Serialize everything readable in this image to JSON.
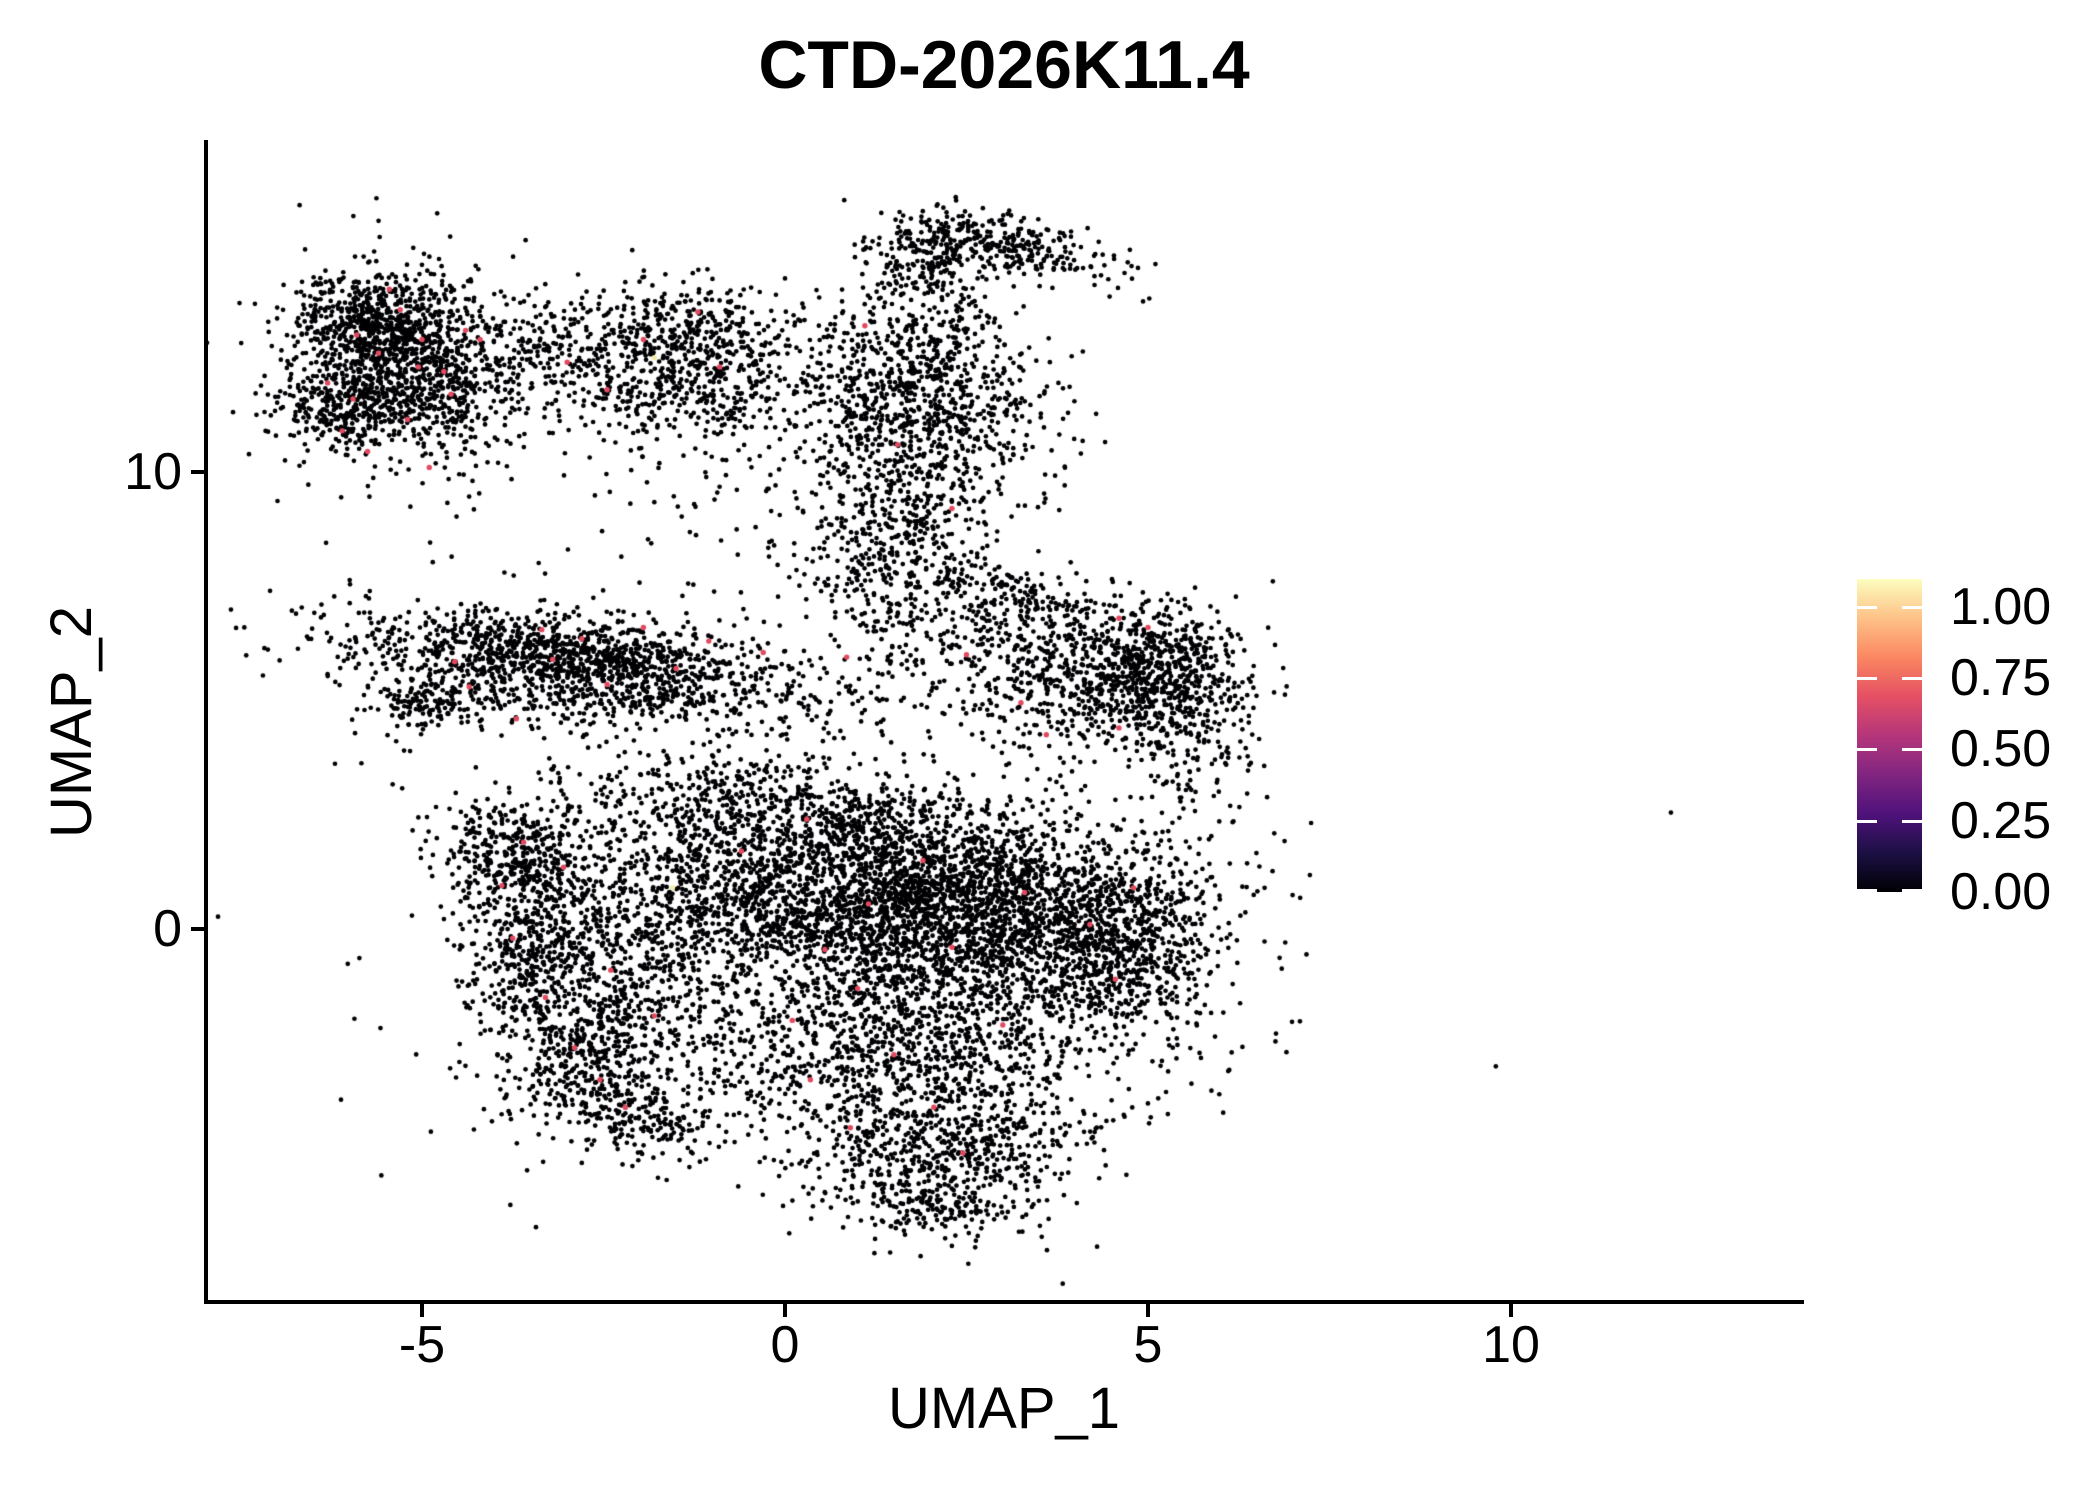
{
  "title": "CTD-2026K11.4",
  "axes": {
    "x": {
      "label": "UMAP_1",
      "ticks": [
        "-5",
        "0",
        "5",
        "10"
      ],
      "tick_values": [
        -5,
        0,
        5,
        10
      ],
      "range": [
        -7.97,
        14.01
      ]
    },
    "y": {
      "label": "UMAP_2",
      "ticks": [
        "10",
        "0"
      ],
      "tick_values": [
        10,
        0
      ],
      "range": [
        -8.16,
        17.26
      ]
    }
  },
  "legend": {
    "ticks": [
      "1.00",
      "0.75",
      "0.50",
      "0.25",
      "0.00"
    ],
    "tick_values": [
      1.0,
      0.75,
      0.5,
      0.25,
      0.0
    ],
    "bar_value_range": [
      0,
      1.098
    ],
    "colormap": [
      [
        "#000004",
        0.0
      ],
      [
        "#1C1044",
        0.125
      ],
      [
        "#4F127B",
        0.25
      ],
      [
        "#812581",
        0.375
      ],
      [
        "#B5367A",
        0.5
      ],
      [
        "#E55064",
        0.625
      ],
      [
        "#FB8761",
        0.75
      ],
      [
        "#FEC287",
        0.875
      ],
      [
        "#FCFDBF",
        1.0
      ]
    ]
  },
  "chart_data": {
    "type": "scatter",
    "title": "CTD-2026K11.4",
    "xlabel": "UMAP_1",
    "ylabel": "UMAP_2",
    "xlim": [
      -7.97,
      14.01
    ],
    "ylim": [
      -8.16,
      17.26
    ],
    "grid": false,
    "legend_position": "right",
    "point_color": "#000004",
    "highlight_color": "#E3495F",
    "high_expression_color": "#F2EDA8",
    "clusters": [
      {
        "x": -5.6,
        "y": 13.25,
        "sx": 0.62,
        "sy": 0.55,
        "rot": 0,
        "n": 620
      },
      {
        "x": -5.05,
        "y": 11.95,
        "sx": 0.7,
        "sy": 0.7,
        "rot": 0,
        "n": 620
      },
      {
        "x": -6.15,
        "y": 11.5,
        "sx": 0.45,
        "sy": 0.5,
        "rot": 0,
        "n": 260
      },
      {
        "x": -5.3,
        "y": 12.3,
        "sx": 1.05,
        "sy": 1.4,
        "rot": 0,
        "n": 270
      },
      {
        "x": -3.55,
        "y": 12.9,
        "sx": 0.52,
        "sy": 0.55,
        "rot": 0,
        "n": 95
      },
      {
        "x": -2.05,
        "y": 12.35,
        "sx": 0.78,
        "sy": 0.8,
        "rot": 0,
        "n": 430
      },
      {
        "x": -0.75,
        "y": 11.9,
        "sx": 0.7,
        "sy": 0.75,
        "rot": 0,
        "n": 260
      },
      {
        "x": -1.35,
        "y": 13.35,
        "sx": 0.5,
        "sy": 0.38,
        "rot": 0,
        "n": 110
      },
      {
        "x": 1.85,
        "y": 14.55,
        "sx": 0.38,
        "sy": 0.5,
        "rot": 0,
        "n": 190
      },
      {
        "x": 3.1,
        "y": 15.0,
        "sx": 0.8,
        "sy": 0.3,
        "rot": -22,
        "n": 290
      },
      {
        "x": 2.15,
        "y": 13.3,
        "sx": 0.6,
        "sy": 0.65,
        "rot": 0,
        "n": 110
      },
      {
        "x": 0.35,
        "y": 13.1,
        "sx": 0.9,
        "sy": 0.8,
        "rot": 0,
        "n": 90
      },
      {
        "x": 1.9,
        "y": 11.3,
        "sx": 0.9,
        "sy": 0.8,
        "rot": 0,
        "n": 620
      },
      {
        "x": 1.6,
        "y": 9.0,
        "sx": 0.75,
        "sy": 1.2,
        "rot": 0,
        "n": 470
      },
      {
        "x": 1.75,
        "y": 12.55,
        "sx": 0.55,
        "sy": 0.5,
        "rot": 0,
        "n": 130
      },
      {
        "x": 1.45,
        "y": 7.6,
        "sx": 0.55,
        "sy": 0.7,
        "rot": 0,
        "n": 90
      },
      {
        "x": -1.0,
        "y": 9.6,
        "sx": 0.9,
        "sy": 1.2,
        "rot": 0,
        "n": 60
      },
      {
        "x": -3.3,
        "y": 6.1,
        "sx": 1.35,
        "sy": 0.38,
        "rot": -6,
        "n": 760
      },
      {
        "x": -2.2,
        "y": 5.3,
        "sx": 1.6,
        "sy": 0.45,
        "rot": -5,
        "n": 620
      },
      {
        "x": -5.0,
        "y": 4.95,
        "sx": 0.45,
        "sy": 0.3,
        "rot": 20,
        "n": 130
      },
      {
        "x": -2.7,
        "y": 5.8,
        "sx": 2.1,
        "sy": 0.95,
        "rot": -5,
        "n": 280
      },
      {
        "x": 5.15,
        "y": 5.5,
        "sx": 0.6,
        "sy": 0.8,
        "rot": 0,
        "n": 660
      },
      {
        "x": 3.9,
        "y": 5.6,
        "sx": 0.95,
        "sy": 0.85,
        "rot": 0,
        "n": 480
      },
      {
        "x": 3.3,
        "y": 7.35,
        "sx": 0.65,
        "sy": 0.22,
        "rot": -18,
        "n": 80
      },
      {
        "x": 2.75,
        "y": 6.6,
        "sx": 1.0,
        "sy": 0.65,
        "rot": 0,
        "n": 170
      },
      {
        "x": 5.6,
        "y": 3.6,
        "sx": 0.5,
        "sy": 0.8,
        "rot": 0,
        "n": 90
      },
      {
        "x": -3.6,
        "y": 1.5,
        "sx": 0.55,
        "sy": 0.75,
        "rot": 25,
        "n": 430
      },
      {
        "x": -3.45,
        "y": -0.6,
        "sx": 0.45,
        "sy": 0.95,
        "rot": 0,
        "n": 400
      },
      {
        "x": -2.65,
        "y": -2.75,
        "sx": 0.5,
        "sy": 0.85,
        "rot": -30,
        "n": 360
      },
      {
        "x": -2.0,
        "y": -4.1,
        "sx": 0.5,
        "sy": 0.4,
        "rot": -40,
        "n": 190
      },
      {
        "x": -2.7,
        "y": -0.8,
        "sx": 0.85,
        "sy": 1.7,
        "rot": 0,
        "n": 300
      },
      {
        "x": -1.45,
        "y": 0.3,
        "sx": 0.85,
        "sy": 1.25,
        "rot": 0,
        "n": 360
      },
      {
        "x": -0.5,
        "y": 2.75,
        "sx": 1.35,
        "sy": 0.6,
        "rot": -8,
        "n": 430
      },
      {
        "x": 0.8,
        "y": 0.85,
        "sx": 1.35,
        "sy": 1.15,
        "rot": 0,
        "n": 1850
      },
      {
        "x": 2.7,
        "y": 0.3,
        "sx": 1.25,
        "sy": 1.25,
        "rot": 0,
        "n": 1650
      },
      {
        "x": 4.6,
        "y": -0.25,
        "sx": 0.8,
        "sy": 1.05,
        "rot": 0,
        "n": 760
      },
      {
        "x": 1.3,
        "y": -2.8,
        "sx": 1.55,
        "sy": 0.95,
        "rot": 0,
        "n": 950
      },
      {
        "x": 2.2,
        "y": -4.8,
        "sx": 0.95,
        "sy": 0.7,
        "rot": 18,
        "n": 520
      },
      {
        "x": 2.1,
        "y": -6.1,
        "sx": 0.55,
        "sy": 0.4,
        "rot": 0,
        "n": 160
      },
      {
        "x": 1.0,
        "y": -0.6,
        "sx": 2.6,
        "sy": 2.3,
        "rot": 0,
        "n": 460
      },
      {
        "x": 12.2,
        "y": 2.56,
        "sx": 0.02,
        "sy": 0.02,
        "rot": 0,
        "n": 1
      }
    ],
    "highlights": [
      {
        "x": -5.9,
        "y": 13.0
      },
      {
        "x": -5.3,
        "y": 13.55
      },
      {
        "x": -5.0,
        "y": 12.9
      },
      {
        "x": -5.6,
        "y": 12.6
      },
      {
        "x": -4.7,
        "y": 12.2
      },
      {
        "x": -5.95,
        "y": 11.6
      },
      {
        "x": -6.1,
        "y": 10.9
      },
      {
        "x": -5.2,
        "y": 11.15
      },
      {
        "x": -4.6,
        "y": 11.7
      },
      {
        "x": -5.75,
        "y": 10.45
      },
      {
        "x": -4.9,
        "y": 10.1
      },
      {
        "x": -6.3,
        "y": 11.95
      },
      {
        "x": -4.4,
        "y": 13.1
      },
      {
        "x": -5.05,
        "y": 12.3
      },
      {
        "x": -4.2,
        "y": 12.9
      },
      {
        "x": -5.45,
        "y": 14.0
      },
      {
        "x": -3.0,
        "y": 12.4
      },
      {
        "x": -1.95,
        "y": 12.9
      },
      {
        "x": -2.45,
        "y": 11.8
      },
      {
        "x": -0.9,
        "y": 12.3
      },
      {
        "x": -1.2,
        "y": 13.5
      },
      {
        "x": 1.1,
        "y": 13.2
      },
      {
        "x": 1.55,
        "y": 10.6
      },
      {
        "x": 2.3,
        "y": 9.2
      },
      {
        "x": -4.35,
        "y": 5.3
      },
      {
        "x": -3.7,
        "y": 4.6
      },
      {
        "x": -2.8,
        "y": 6.35
      },
      {
        "x": -1.95,
        "y": 6.6
      },
      {
        "x": -1.05,
        "y": 6.3
      },
      {
        "x": -0.3,
        "y": 6.05
      },
      {
        "x": 0.85,
        "y": 5.95
      },
      {
        "x": -2.45,
        "y": 5.35
      },
      {
        "x": -3.2,
        "y": 5.9
      },
      {
        "x": -1.5,
        "y": 5.7
      },
      {
        "x": -3.35,
        "y": 6.55
      },
      {
        "x": -4.55,
        "y": 5.85
      },
      {
        "x": 4.6,
        "y": 4.4
      },
      {
        "x": 4.6,
        "y": 6.8
      },
      {
        "x": 3.25,
        "y": 4.95
      },
      {
        "x": 3.6,
        "y": 4.25
      },
      {
        "x": 5.0,
        "y": 6.6
      },
      {
        "x": 2.5,
        "y": 6.0
      },
      {
        "x": -3.6,
        "y": 1.9
      },
      {
        "x": -3.9,
        "y": 0.95
      },
      {
        "x": -3.75,
        "y": -0.2
      },
      {
        "x": -3.3,
        "y": -1.5
      },
      {
        "x": -2.9,
        "y": -2.6
      },
      {
        "x": -2.55,
        "y": -3.3
      },
      {
        "x": -2.2,
        "y": -3.9
      },
      {
        "x": -3.05,
        "y": 1.35
      },
      {
        "x": -2.4,
        "y": -0.9
      },
      {
        "x": -1.8,
        "y": -1.9
      },
      {
        "x": 0.3,
        "y": 2.4
      },
      {
        "x": 1.9,
        "y": 1.5
      },
      {
        "x": 1.15,
        "y": 0.55
      },
      {
        "x": 0.55,
        "y": -0.45
      },
      {
        "x": 1.0,
        "y": -1.3
      },
      {
        "x": 2.3,
        "y": -0.4
      },
      {
        "x": 3.3,
        "y": 0.8
      },
      {
        "x": 4.2,
        "y": 0.1
      },
      {
        "x": 4.55,
        "y": -1.1
      },
      {
        "x": 3.0,
        "y": -2.1
      },
      {
        "x": 1.5,
        "y": -2.75
      },
      {
        "x": 0.35,
        "y": -3.3
      },
      {
        "x": 2.05,
        "y": -3.9
      },
      {
        "x": 2.45,
        "y": -4.9
      },
      {
        "x": 0.9,
        "y": -4.35
      },
      {
        "x": 4.8,
        "y": 0.9
      },
      {
        "x": -0.6,
        "y": 1.7
      },
      {
        "x": 0.1,
        "y": -2.0
      },
      {
        "x": -1.55,
        "y": 0.9,
        "c": "#F2EDA8"
      },
      {
        "x": -1.8,
        "y": 12.5,
        "c": "#F2EDA8"
      }
    ],
    "outlier_point": {
      "x": 12.2,
      "y": 2.56
    }
  }
}
